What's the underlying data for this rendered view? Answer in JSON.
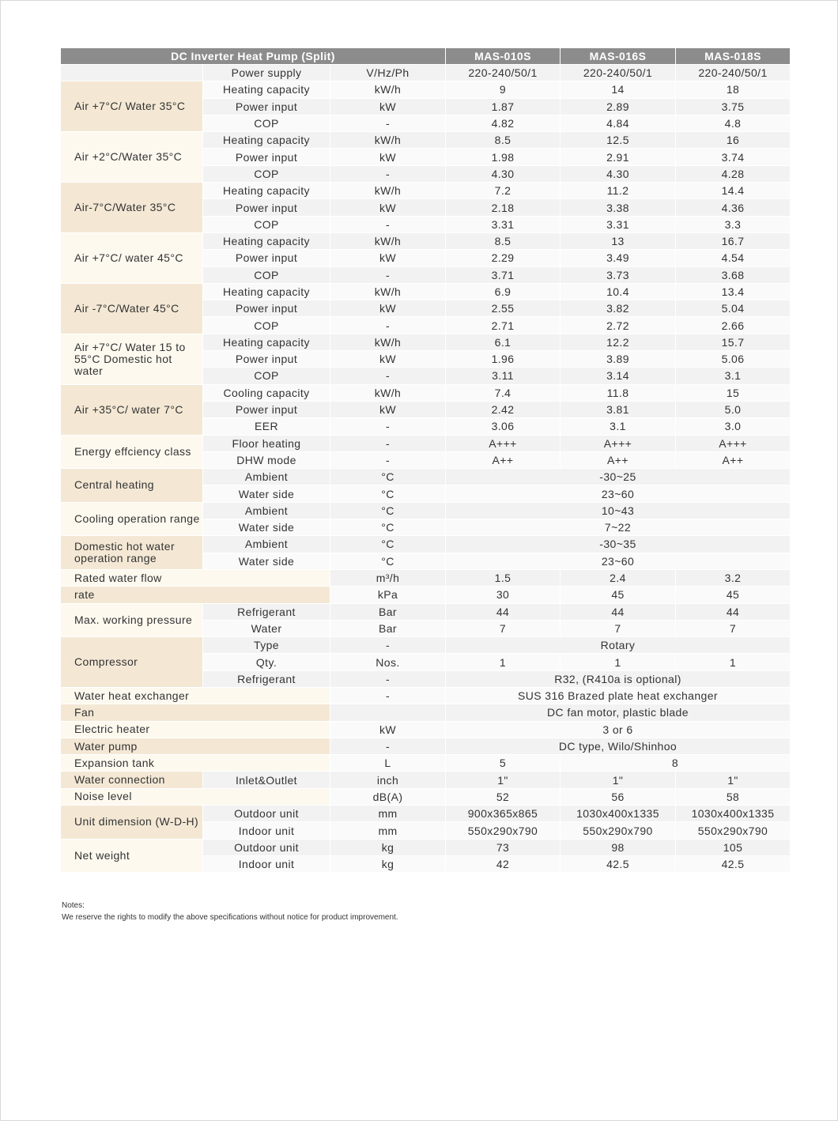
{
  "header": {
    "title": "DC Inverter Heat Pump (Split)",
    "models": [
      "MAS-010S",
      "MAS-016S",
      "MAS-018S"
    ]
  },
  "groups": [
    {
      "label": "",
      "rows": [
        {
          "param": "Power supply",
          "unit": "V/Hz/Ph",
          "values": [
            "220-240/50/1",
            "220-240/50/1",
            "220-240/50/1"
          ]
        }
      ]
    },
    {
      "label": "Air +7°C/ Water 35°C",
      "rows": [
        {
          "param": "Heating capacity",
          "unit": "kW/h",
          "values": [
            "9",
            "14",
            "18"
          ]
        },
        {
          "param": "Power input",
          "unit": "kW",
          "values": [
            "1.87",
            "2.89",
            "3.75"
          ]
        },
        {
          "param": "COP",
          "unit": "-",
          "values": [
            "4.82",
            "4.84",
            "4.8"
          ]
        }
      ]
    },
    {
      "label": "Air +2°C/Water 35°C",
      "rows": [
        {
          "param": "Heating capacity",
          "unit": "kW/h",
          "values": [
            "8.5",
            "12.5",
            "16"
          ]
        },
        {
          "param": "Power input",
          "unit": "kW",
          "values": [
            "1.98",
            "2.91",
            "3.74"
          ]
        },
        {
          "param": "COP",
          "unit": "-",
          "values": [
            "4.30",
            "4.30",
            "4.28"
          ]
        }
      ]
    },
    {
      "label": "Air-7°C/Water 35°C",
      "rows": [
        {
          "param": "Heating capacity",
          "unit": "kW/h",
          "values": [
            "7.2",
            "11.2",
            "14.4"
          ]
        },
        {
          "param": "Power input",
          "unit": "kW",
          "values": [
            "2.18",
            "3.38",
            "4.36"
          ]
        },
        {
          "param": "COP",
          "unit": "-",
          "values": [
            "3.31",
            "3.31",
            "3.3"
          ]
        }
      ]
    },
    {
      "label": "Air +7°C/ water 45°C",
      "rows": [
        {
          "param": "Heating capacity",
          "unit": "kW/h",
          "values": [
            "8.5",
            "13",
            "16.7"
          ]
        },
        {
          "param": "Power input",
          "unit": "kW",
          "values": [
            "2.29",
            "3.49",
            "4.54"
          ]
        },
        {
          "param": "COP",
          "unit": "-",
          "values": [
            "3.71",
            "3.73",
            "3.68"
          ]
        }
      ]
    },
    {
      "label": "Air -7°C/Water 45°C",
      "rows": [
        {
          "param": "Heating capacity",
          "unit": "kW/h",
          "values": [
            "6.9",
            "10.4",
            "13.4"
          ]
        },
        {
          "param": "Power input",
          "unit": "kW",
          "values": [
            "2.55",
            "3.82",
            "5.04"
          ]
        },
        {
          "param": "COP",
          "unit": "-",
          "values": [
            "2.71",
            "2.72",
            "2.66"
          ]
        }
      ]
    },
    {
      "label": "Air +7°C/ Water 15 to 55°C Domestic hot water",
      "rows": [
        {
          "param": "Heating capacity",
          "unit": "kW/h",
          "values": [
            "6.1",
            "12.2",
            "15.7"
          ]
        },
        {
          "param": "Power input",
          "unit": "kW",
          "values": [
            "1.96",
            "3.89",
            "5.06"
          ]
        },
        {
          "param": "COP",
          "unit": "-",
          "values": [
            "3.11",
            "3.14",
            "3.1"
          ]
        }
      ]
    },
    {
      "label": "Air +35°C/ water 7°C",
      "rows": [
        {
          "param": "Cooling capacity",
          "unit": "kW/h",
          "values": [
            "7.4",
            "11.8",
            "15"
          ]
        },
        {
          "param": "Power input",
          "unit": "kW",
          "values": [
            "2.42",
            "3.81",
            "5.0"
          ]
        },
        {
          "param": "EER",
          "unit": "-",
          "values": [
            "3.06",
            "3.1",
            "3.0"
          ]
        }
      ]
    },
    {
      "label": "Energy effciency class",
      "rows": [
        {
          "param": "Floor heating",
          "unit": "-",
          "values": [
            "A+++",
            "A+++",
            "A+++"
          ]
        },
        {
          "param": "DHW mode",
          "unit": "-",
          "values": [
            "A++",
            "A++",
            "A++"
          ]
        }
      ]
    },
    {
      "label": "Central heating",
      "rows": [
        {
          "param": "Ambient",
          "unit": "°C",
          "values": [
            "-30~25",
            null,
            null
          ]
        },
        {
          "param": "Water side",
          "unit": "°C",
          "values": [
            "23~60",
            null,
            null
          ]
        }
      ]
    },
    {
      "label": "Cooling operation range",
      "rows": [
        {
          "param": "Ambient",
          "unit": "°C",
          "values": [
            "10~43",
            null,
            null
          ]
        },
        {
          "param": "Water side",
          "unit": "°C",
          "values": [
            "7~22",
            null,
            null
          ]
        }
      ]
    },
    {
      "label": "Domestic hot water operation range",
      "rows": [
        {
          "param": "Ambient",
          "unit": "°C",
          "values": [
            "-30~35",
            null,
            null
          ]
        },
        {
          "param": "Water side",
          "unit": "°C",
          "values": [
            "23~60",
            null,
            null
          ]
        }
      ]
    },
    {
      "label": "Rated water flow",
      "rows": [
        {
          "param": null,
          "unit": "m³/h",
          "values": [
            "1.5",
            "2.4",
            "3.2"
          ]
        }
      ]
    },
    {
      "label": "rate",
      "rows": [
        {
          "param": null,
          "unit": "kPa",
          "values": [
            "30",
            "45",
            "45"
          ]
        }
      ]
    },
    {
      "label": "Max. working pressure",
      "rows": [
        {
          "param": "Refrigerant",
          "unit": "Bar",
          "values": [
            "44",
            "44",
            "44"
          ]
        },
        {
          "param": "Water",
          "unit": "Bar",
          "values": [
            "7",
            "7",
            "7"
          ]
        }
      ]
    },
    {
      "label": "Compressor",
      "rows": [
        {
          "param": "Type",
          "unit": "-",
          "values": [
            "Rotary",
            null,
            null
          ]
        },
        {
          "param": "Qty.",
          "unit": "Nos.",
          "values": [
            "1",
            "1",
            "1"
          ]
        },
        {
          "param": "Refrigerant",
          "unit": "-",
          "values": [
            "R32, (R410a is optional)",
            null,
            null
          ]
        }
      ]
    },
    {
      "label": "Water heat exchanger",
      "rows": [
        {
          "param": null,
          "unit": "-",
          "values": [
            "SUS 316 Brazed plate heat exchanger",
            null,
            null
          ]
        }
      ]
    },
    {
      "label": "Fan",
      "rows": [
        {
          "param": null,
          "unit": "",
          "values": [
            "DC fan motor, plastic blade",
            null,
            null
          ]
        }
      ]
    },
    {
      "label": "Electric heater",
      "rows": [
        {
          "param": null,
          "unit": "kW",
          "values": [
            "3 or 6",
            null,
            null
          ]
        }
      ]
    },
    {
      "label": "Water pump",
      "rows": [
        {
          "param": null,
          "unit": "-",
          "values": [
            "DC type, Wilo/Shinhoo",
            null,
            null
          ]
        }
      ]
    },
    {
      "label": "Expansion tank",
      "rows": [
        {
          "param": null,
          "unit": "L",
          "values": [
            "5",
            "8",
            null
          ]
        }
      ]
    },
    {
      "label": "Water connection",
      "rows": [
        {
          "param": "Inlet&Outlet",
          "unit": "inch",
          "values": [
            "1\"",
            "1\"",
            "1\""
          ]
        }
      ]
    },
    {
      "label": "Noise level",
      "rows": [
        {
          "param": null,
          "unit": "dB(A)",
          "values": [
            "52",
            "56",
            "58"
          ]
        }
      ]
    },
    {
      "label": "Unit dimension (W-D-H)",
      "rows": [
        {
          "param": "Outdoor unit",
          "unit": "mm",
          "values": [
            "900x365x865",
            "1030x400x1335",
            "1030x400x1335"
          ]
        },
        {
          "param": "Indoor unit",
          "unit": "mm",
          "values": [
            "550x290x790",
            "550x290x790",
            "550x290x790"
          ]
        }
      ]
    },
    {
      "label": "Net weight",
      "rows": [
        {
          "param": "Outdoor unit",
          "unit": "kg",
          "values": [
            "73",
            "98",
            "105"
          ]
        },
        {
          "param": "Indoor unit",
          "unit": "kg",
          "values": [
            "42",
            "42.5",
            "42.5"
          ]
        }
      ]
    }
  ],
  "notes": {
    "title": "Notes:",
    "text": "We reserve the rights to modify the above specifications without notice for product improvement."
  },
  "colors": {
    "header": "#8c8c8c",
    "beige_dark": "#f4e8d5",
    "beige_light": "#fdf9ef"
  }
}
